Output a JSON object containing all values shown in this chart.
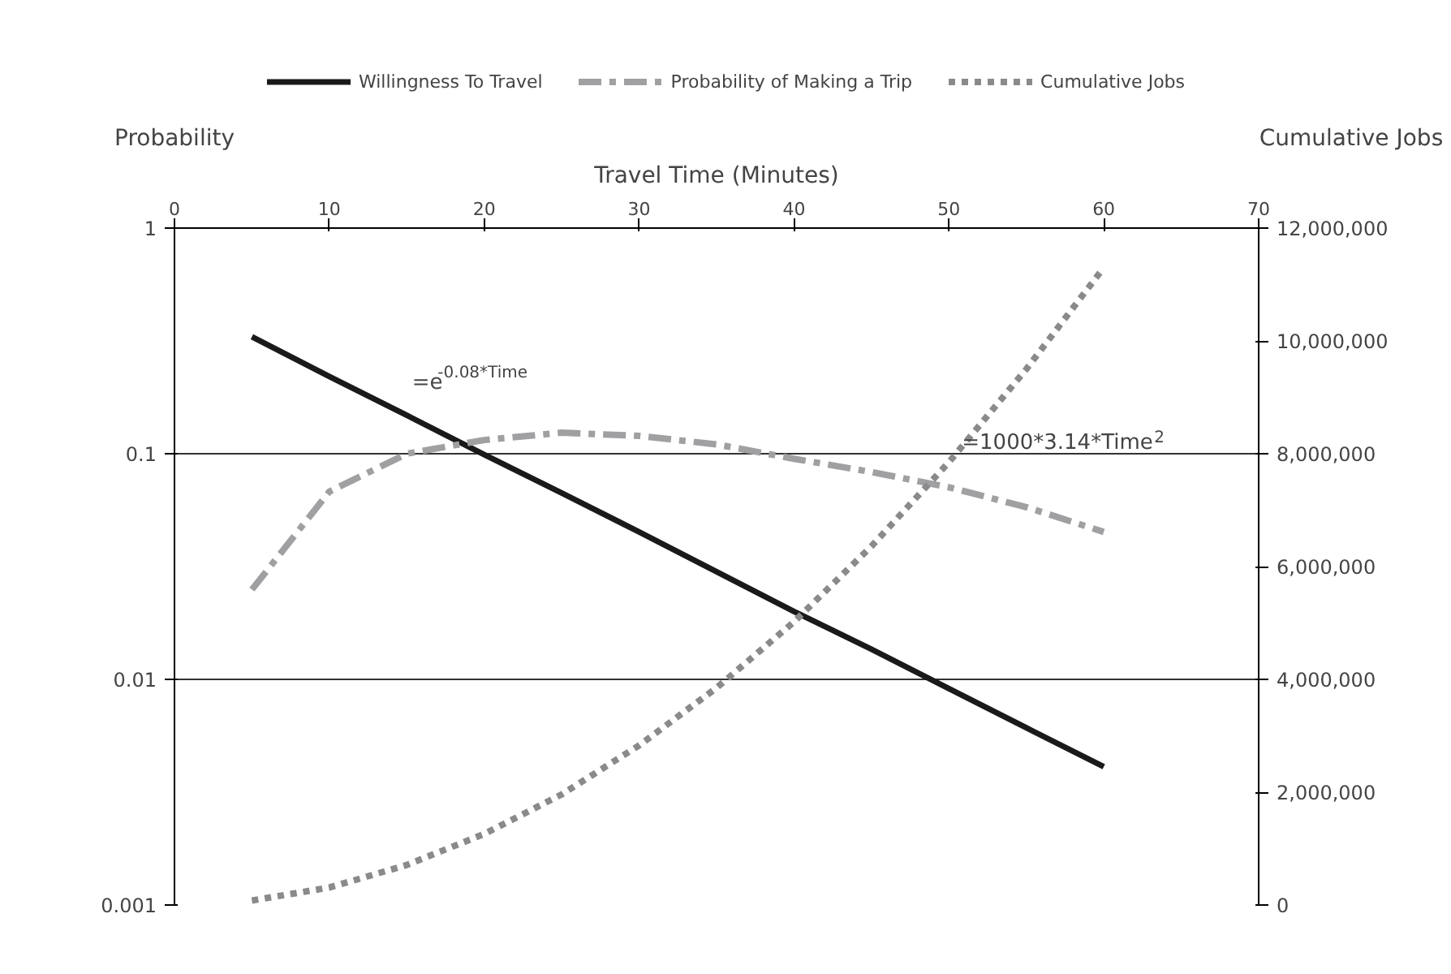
{
  "chart_data": {
    "type": "line",
    "xlabel": "Travel Time (Minutes)",
    "ylabel": "Probability",
    "y2label": "Cumulative Jobs",
    "x": [
      5,
      10,
      15,
      20,
      25,
      30,
      35,
      40,
      45,
      50,
      55,
      60
    ],
    "series": [
      {
        "name": "Willingness To Travel",
        "color": "#1a1a1a",
        "line_style": "solid",
        "values": [
          0.33,
          0.22,
          0.148,
          0.099,
          0.067,
          0.045,
          0.03,
          0.02,
          0.0136,
          0.0091,
          0.0061,
          0.0041
        ]
      },
      {
        "name": "Probability of Making a Trip",
        "color": "#a0a0a2",
        "line_style": "dashed",
        "values": [
          0.025,
          0.068,
          0.1,
          0.115,
          0.124,
          0.12,
          0.11,
          0.095,
          0.083,
          0.071,
          0.058,
          0.045
        ]
      },
      {
        "name": "Cumulative Jobs",
        "color": "#8a8a8c",
        "line_style": "dotted",
        "axis": "y2",
        "values": [
          80000,
          310000,
          710000,
          1260000,
          1960000,
          2830000,
          3850000,
          5020000,
          6360000,
          7850000,
          9500000,
          11300000
        ]
      }
    ],
    "xlim": [
      0,
      70
    ],
    "xticks": [
      0,
      10,
      20,
      30,
      40,
      50,
      60,
      70
    ],
    "ylim": [
      0.001,
      1
    ],
    "yticks": [
      {
        "value": 0.001,
        "label": "0.001"
      },
      {
        "value": 0.01,
        "label": "0.01"
      },
      {
        "value": 0.1,
        "label": "0.1"
      },
      {
        "value": 1,
        "label": "1"
      }
    ],
    "log": "y",
    "y2lim": [
      0,
      12000000
    ],
    "y2ticks": [
      {
        "value": 0,
        "label": "0"
      },
      {
        "value": 2000000,
        "label": "2,000,000"
      },
      {
        "value": 4000000,
        "label": "4,000,000"
      },
      {
        "value": 6000000,
        "label": "6,000,000"
      },
      {
        "value": 8000000,
        "label": "8,000,000"
      },
      {
        "value": 10000000,
        "label": "10,000,000"
      },
      {
        "value": 12000000,
        "label": "12,000,000"
      }
    ],
    "annotations": [
      {
        "text": "=e$^{-0.08*Time}$",
        "x": 14.5,
        "y": 0.17
      },
      {
        "text": "=1000*3.14*Time$^{2}$",
        "x": 50,
        "y": 0.092
      }
    ],
    "grid": "y",
    "legend": "top",
    "marker": "none"
  }
}
